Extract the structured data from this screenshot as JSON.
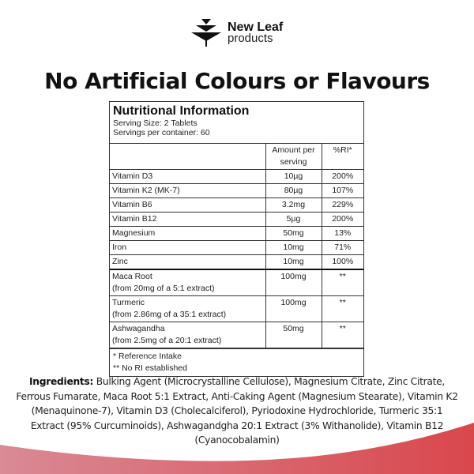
{
  "brand": {
    "line1": "New Leaf",
    "line2": "products"
  },
  "heading": "No Artificial Colours or Flavours",
  "colors": {
    "wave_left": "#d98a96",
    "wave_right": "#d9474c"
  },
  "nutrition": {
    "title": "Nutritional Information",
    "serving_size": "Serving Size: 2 Tablets",
    "servings_per_container": "Servings per container: 60",
    "col_amount": "Amount per serving",
    "col_ri": "%RI*",
    "rows": [
      {
        "name": "Vitamin D3",
        "amount": "10µg",
        "ri": "200%"
      },
      {
        "name": "Vitamin K2 (MK-7)",
        "amount": "80µg",
        "ri": "107%"
      },
      {
        "name": "Vitamin B6",
        "amount": "3.2mg",
        "ri": "229%"
      },
      {
        "name": "Vitamin B12",
        "amount": "5µg",
        "ri": "200%"
      },
      {
        "name": "Magnesium",
        "amount": "50mg",
        "ri": "13%"
      },
      {
        "name": "Iron",
        "amount": "10mg",
        "ri": "71%"
      },
      {
        "name": "Zinc",
        "amount": "10mg",
        "ri": "100%"
      }
    ],
    "extracts": [
      {
        "name": "Maca Root",
        "source": "(from 20mg of a 5:1 extract)",
        "amount": "100mg",
        "ri": "**"
      },
      {
        "name": "Turmeric",
        "source": "(from 2.86mg of a 35:1 extract)",
        "amount": "100mg",
        "ri": "**"
      },
      {
        "name": "Ashwagandha",
        "source": "(from 2.5mg of a 20:1 extract)",
        "amount": "50mg",
        "ri": "**"
      }
    ],
    "footnote1": "* Reference Intake",
    "footnote2": "** No RI established"
  },
  "ingredients": {
    "label": "Ingredients:",
    "text": " Bulking Agent (Microcrystalline Cellulose), Magnesium Citrate, Zinc Citrate, Ferrous Fumarate, Maca Root 5:1 Extract, Anti-Caking Agent (Magnesium Stearate), Vitamin K2 (Menaquinone-7), Vitamin D3 (Cholecalciferol), Pyriodoxine Hydrochloride, Turmeric 35:1 Extract (95% Curcuminoids), Ashwagandgha 20:1 Extract (3% Withanolide), Vitamin B12 (Cyanocobalamin)"
  }
}
